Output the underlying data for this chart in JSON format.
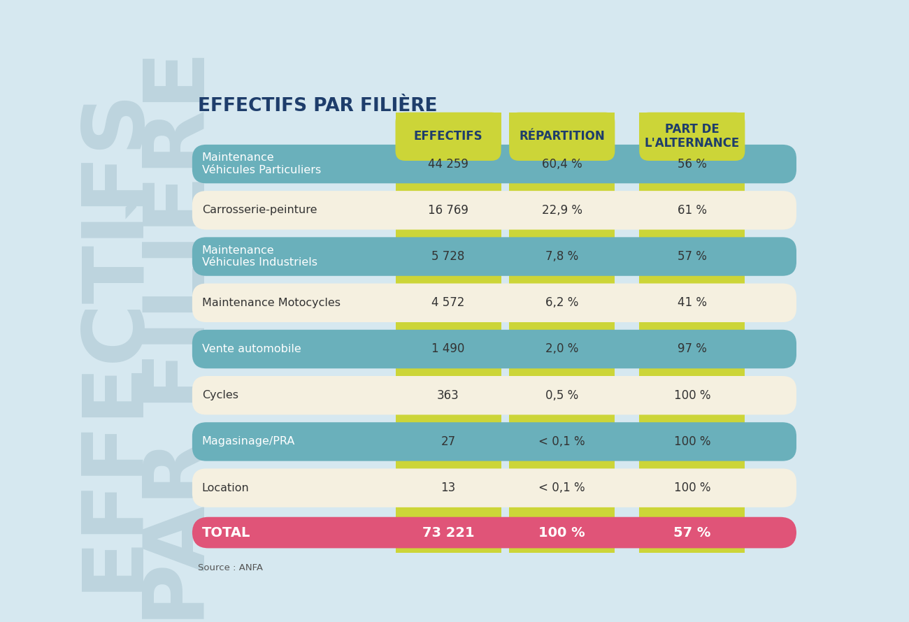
{
  "title": "EFFECTIFS PAR FILIÈRE",
  "source": "Source : ANFA",
  "background_color": "#d6e8f0",
  "header_bg_color": "#ccd538",
  "header_text_color": "#1e3d6b",
  "header_labels": [
    "EFFECTIFS",
    "RÉPARTITION",
    "PART DE\nL'ALTERNANCE"
  ],
  "teal_row_color": "#6ab0bb",
  "white_row_color": "#f5f0e0",
  "total_row_color": "#e05478",
  "total_text_color": "#ffffff",
  "separator_color": "#ccd538",
  "watermark_color": "#bdd4de",
  "rows": [
    {
      "label": "Maintenance\nVéhicules Particuliers",
      "effectifs": "44 259",
      "repartition": "60,4 %",
      "part": "56 %",
      "teal": true
    },
    {
      "label": "Carrosserie-peinture",
      "effectifs": "16 769",
      "repartition": "22,9 %",
      "part": "61 %",
      "teal": false
    },
    {
      "label": "Maintenance\nVéhicules Industriels",
      "effectifs": "5 728",
      "repartition": "7,8 %",
      "part": "57 %",
      "teal": true
    },
    {
      "label": "Maintenance Motocycles",
      "effectifs": "4 572",
      "repartition": "6,2 %",
      "part": "41 %",
      "teal": false
    },
    {
      "label": "Vente automobile",
      "effectifs": "1 490",
      "repartition": "2,0 %",
      "part": "97 %",
      "teal": true
    },
    {
      "label": "Cycles",
      "effectifs": "363",
      "repartition": "0,5 %",
      "part": "100 %",
      "teal": false
    },
    {
      "label": "Magasinage/PRA",
      "effectifs": "27",
      "repartition": "< 0,1 %",
      "part": "100 %",
      "teal": true
    },
    {
      "label": "Location",
      "effectifs": "13",
      "repartition": "< 0,1 %",
      "part": "100 %",
      "teal": false
    }
  ],
  "total": {
    "label": "TOTAL",
    "effectifs": "73 221",
    "repartition": "100 %",
    "part": "57 %"
  }
}
